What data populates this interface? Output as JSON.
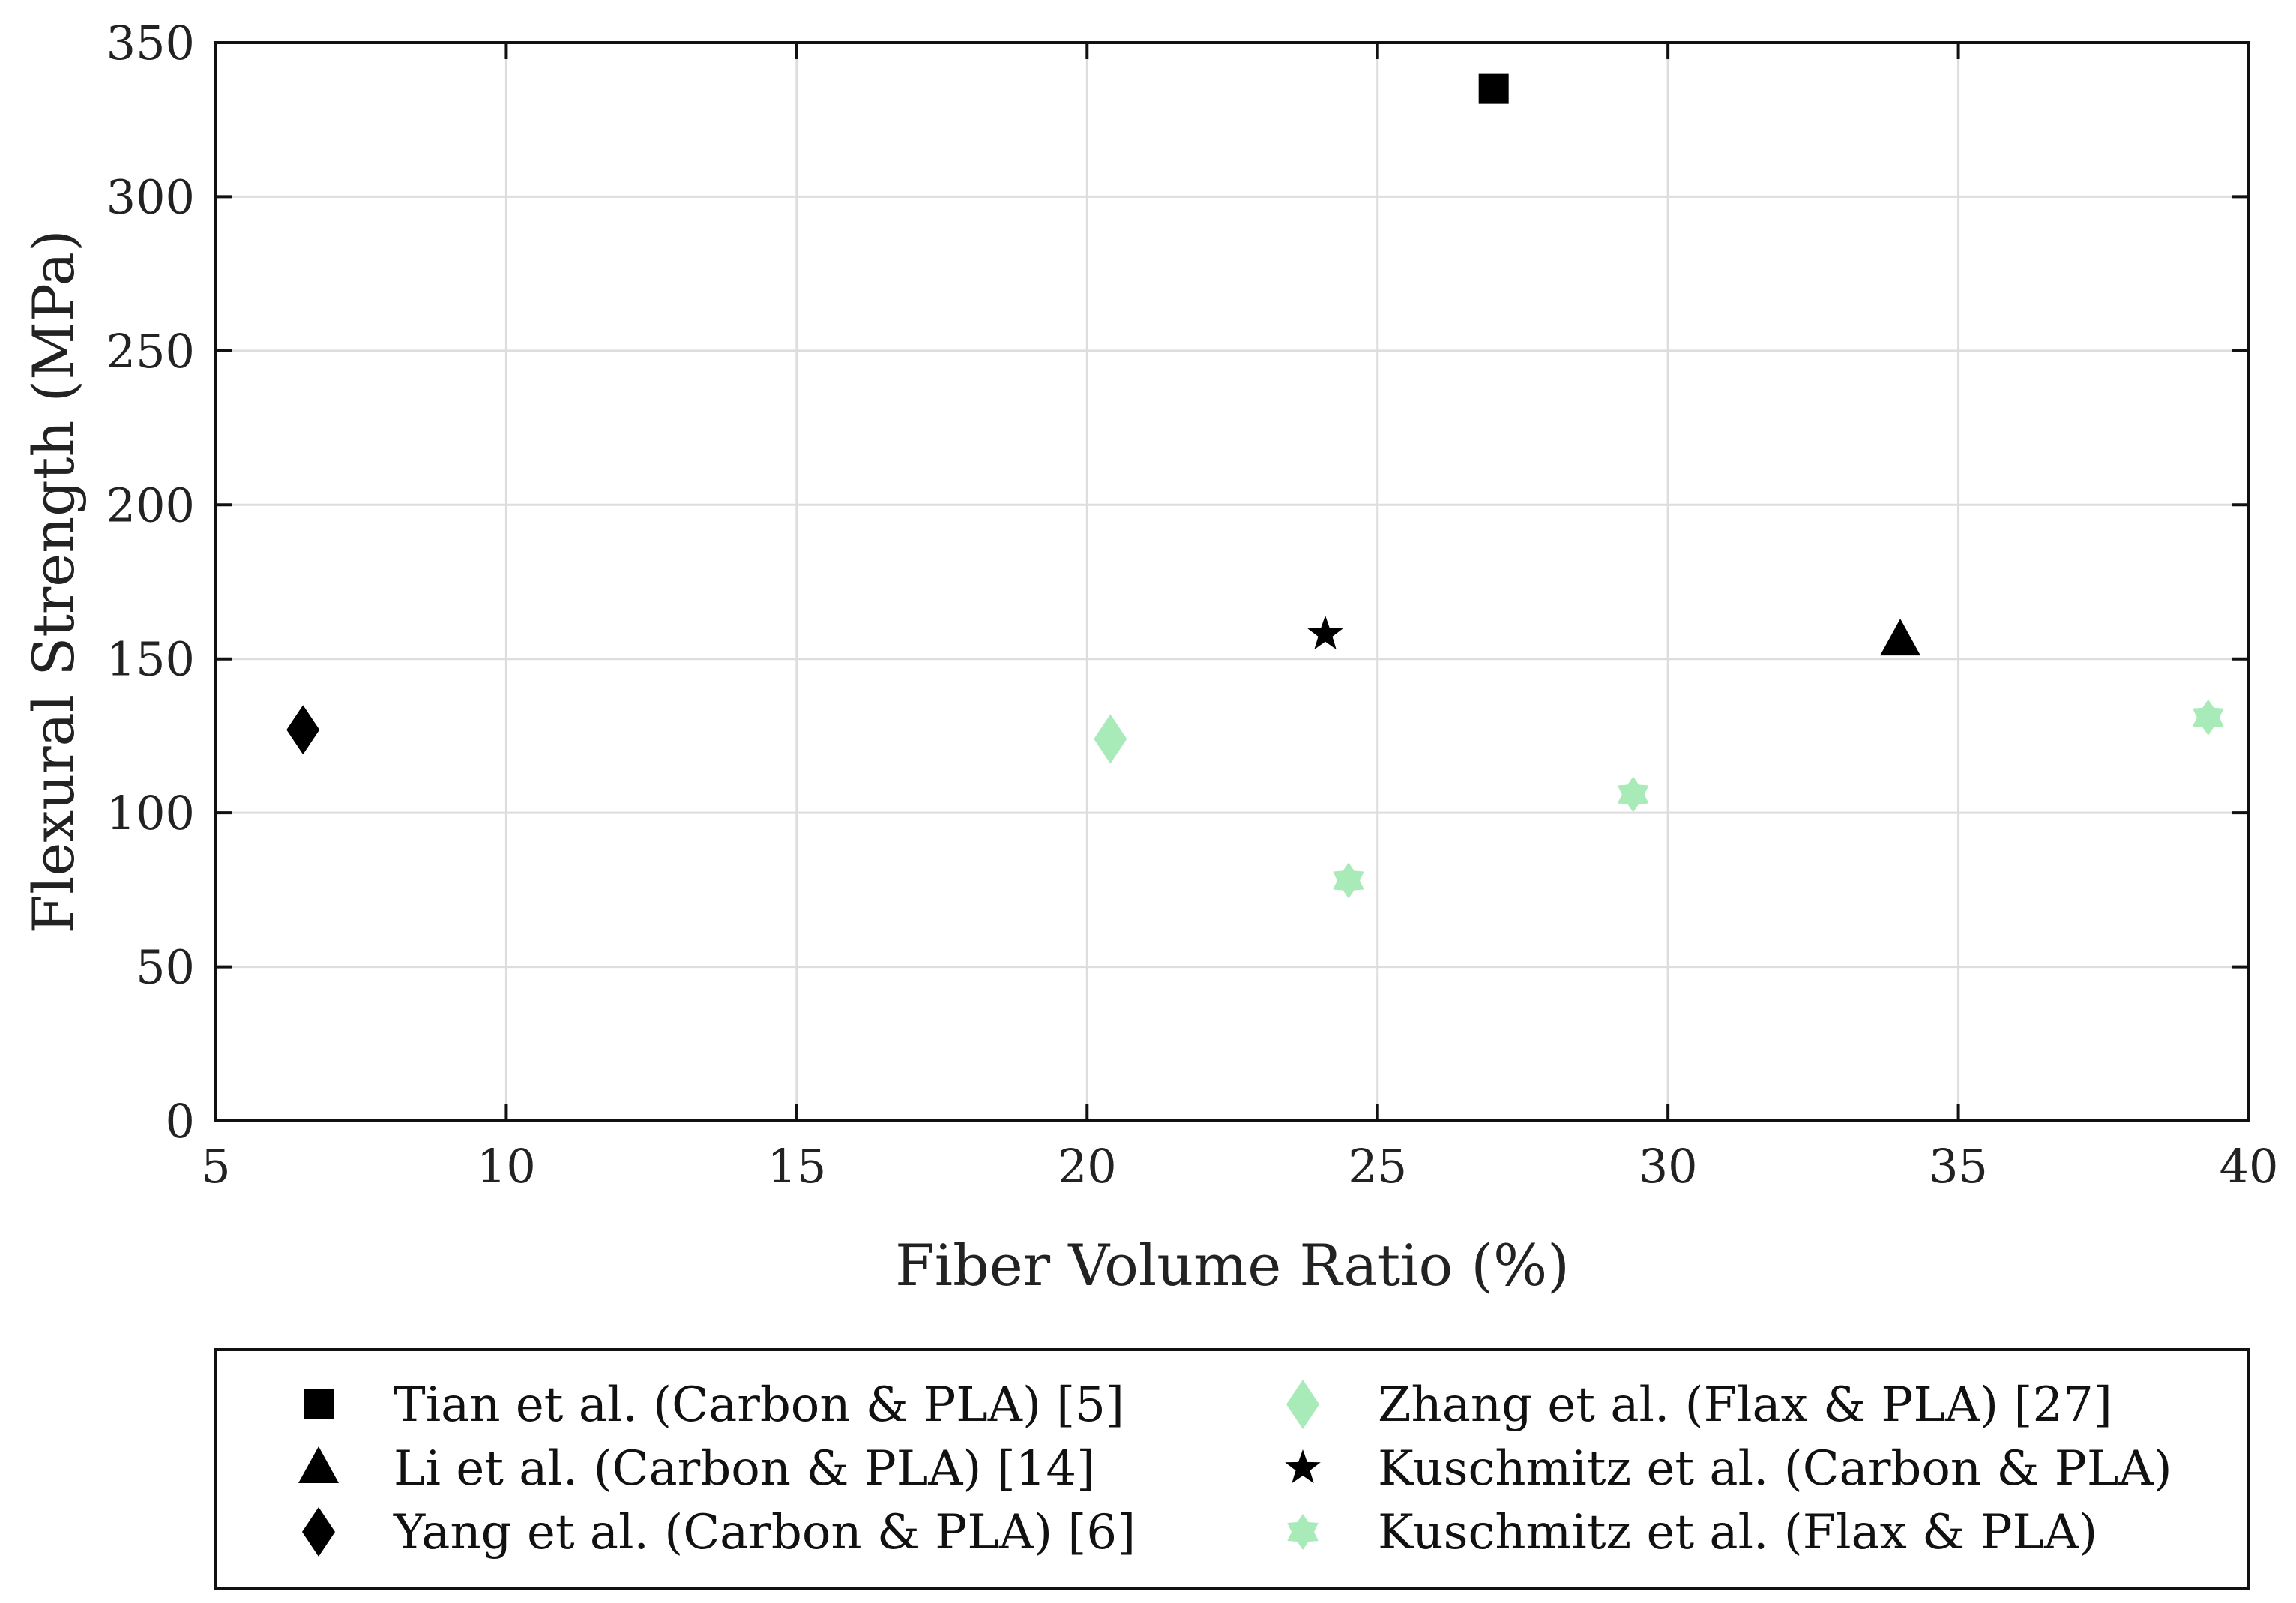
{
  "chart_data": {
    "type": "scatter",
    "title": "",
    "xlabel": "Fiber Volume Ratio (%)",
    "ylabel": "Flexural Strength (MPa)",
    "xlim": [
      5,
      40
    ],
    "ylim": [
      0,
      350
    ],
    "xticks": [
      5,
      10,
      15,
      20,
      25,
      30,
      35,
      40
    ],
    "yticks": [
      0,
      50,
      100,
      150,
      200,
      250,
      300,
      350
    ],
    "grid": true,
    "legend_position": "bottom-outside",
    "series": [
      {
        "name": "Tian et al. (Carbon & PLA) [5]",
        "marker": "square",
        "color": "#000000",
        "points": [
          {
            "x": 27.0,
            "y": 335
          }
        ]
      },
      {
        "name": "Li et al. (Carbon & PLA) [14]",
        "marker": "triangle",
        "color": "#000000",
        "points": [
          {
            "x": 34.0,
            "y": 156
          }
        ]
      },
      {
        "name": "Yang et al. (Carbon & PLA) [6]",
        "marker": "diamond",
        "color": "#000000",
        "points": [
          {
            "x": 6.5,
            "y": 127
          }
        ]
      },
      {
        "name": "Zhang et al. (Flax & PLA) [27]",
        "marker": "diamond",
        "color": "#a8ebb8",
        "points": [
          {
            "x": 20.4,
            "y": 124
          }
        ]
      },
      {
        "name": "Kuschmitz et al. (Carbon & PLA)",
        "marker": "star",
        "color": "#000000",
        "points": [
          {
            "x": 24.1,
            "y": 158
          }
        ]
      },
      {
        "name": "Kuschmitz et al. (Flax & PLA)",
        "marker": "hexagram",
        "color": "#a8ebb8",
        "points": [
          {
            "x": 24.5,
            "y": 78
          },
          {
            "x": 29.4,
            "y": 106
          },
          {
            "x": 39.3,
            "y": 131
          }
        ]
      }
    ]
  }
}
